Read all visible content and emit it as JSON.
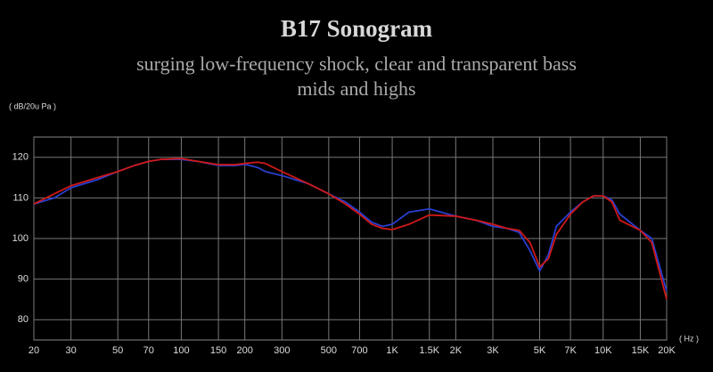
{
  "chart_data": {
    "type": "line",
    "title": "B17 Sonogram",
    "subtitle": [
      "surging low-frequency shock, clear and transparent bass",
      "mids and highs"
    ],
    "y_label": "( dB/20u Pa )",
    "x_label": "( Hz )",
    "xscale": "log",
    "grid": true,
    "x": [
      20,
      25,
      30,
      40,
      50,
      60,
      70,
      80,
      100,
      120,
      150,
      180,
      200,
      230,
      250,
      300,
      400,
      500,
      600,
      700,
      800,
      900,
      1000,
      1200,
      1500,
      2000,
      2500,
      3000,
      3500,
      4000,
      4500,
      5000,
      5500,
      6000,
      7000,
      8000,
      9000,
      10000,
      11000,
      12000,
      15000,
      17000,
      20000
    ],
    "series": [
      {
        "color": "#2a3fd0",
        "values": [
          108.5,
          110,
          112.5,
          114.5,
          116.5,
          118,
          119,
          119.5,
          119.5,
          119,
          118,
          118,
          118.3,
          117.5,
          116.5,
          115.5,
          113.5,
          111,
          109,
          106.5,
          104,
          103,
          103.5,
          106.5,
          107.3,
          105.5,
          104.5,
          103,
          102.5,
          101.5,
          97,
          92,
          96,
          103,
          106.5,
          109,
          110.5,
          110.5,
          109.5,
          106,
          102,
          100,
          87
        ]
      },
      {
        "color": "#d01818",
        "values": [
          108.5,
          111,
          113,
          115,
          116.5,
          118,
          119,
          119.5,
          119.7,
          119,
          118.2,
          118.2,
          118.5,
          118.8,
          118.5,
          116.5,
          113.5,
          111,
          108.5,
          106,
          103.5,
          102.5,
          102.2,
          103.5,
          105.8,
          105.5,
          104.5,
          103.5,
          102.5,
          102,
          99,
          93,
          95,
          101,
          106,
          109,
          110.5,
          110.5,
          109,
          104.5,
          102,
          99,
          85
        ]
      }
    ],
    "xlim": [
      20,
      20000
    ],
    "ylim": [
      75,
      125
    ],
    "yticks": [
      80,
      90,
      100,
      110,
      120
    ],
    "xticks": [
      20,
      30,
      50,
      70,
      100,
      150,
      200,
      300,
      500,
      700,
      {
        "value": 1000,
        "label": "1K"
      },
      {
        "value": 1500,
        "label": "1.5K"
      },
      {
        "value": 2000,
        "label": "2K"
      },
      {
        "value": 3000,
        "label": "3K"
      },
      {
        "value": 5000,
        "label": "5K"
      },
      {
        "value": 7000,
        "label": "7K"
      },
      {
        "value": 10000,
        "label": "10K"
      },
      {
        "value": 15000,
        "label": "15K"
      },
      {
        "value": 20000,
        "label": "20K"
      }
    ]
  }
}
